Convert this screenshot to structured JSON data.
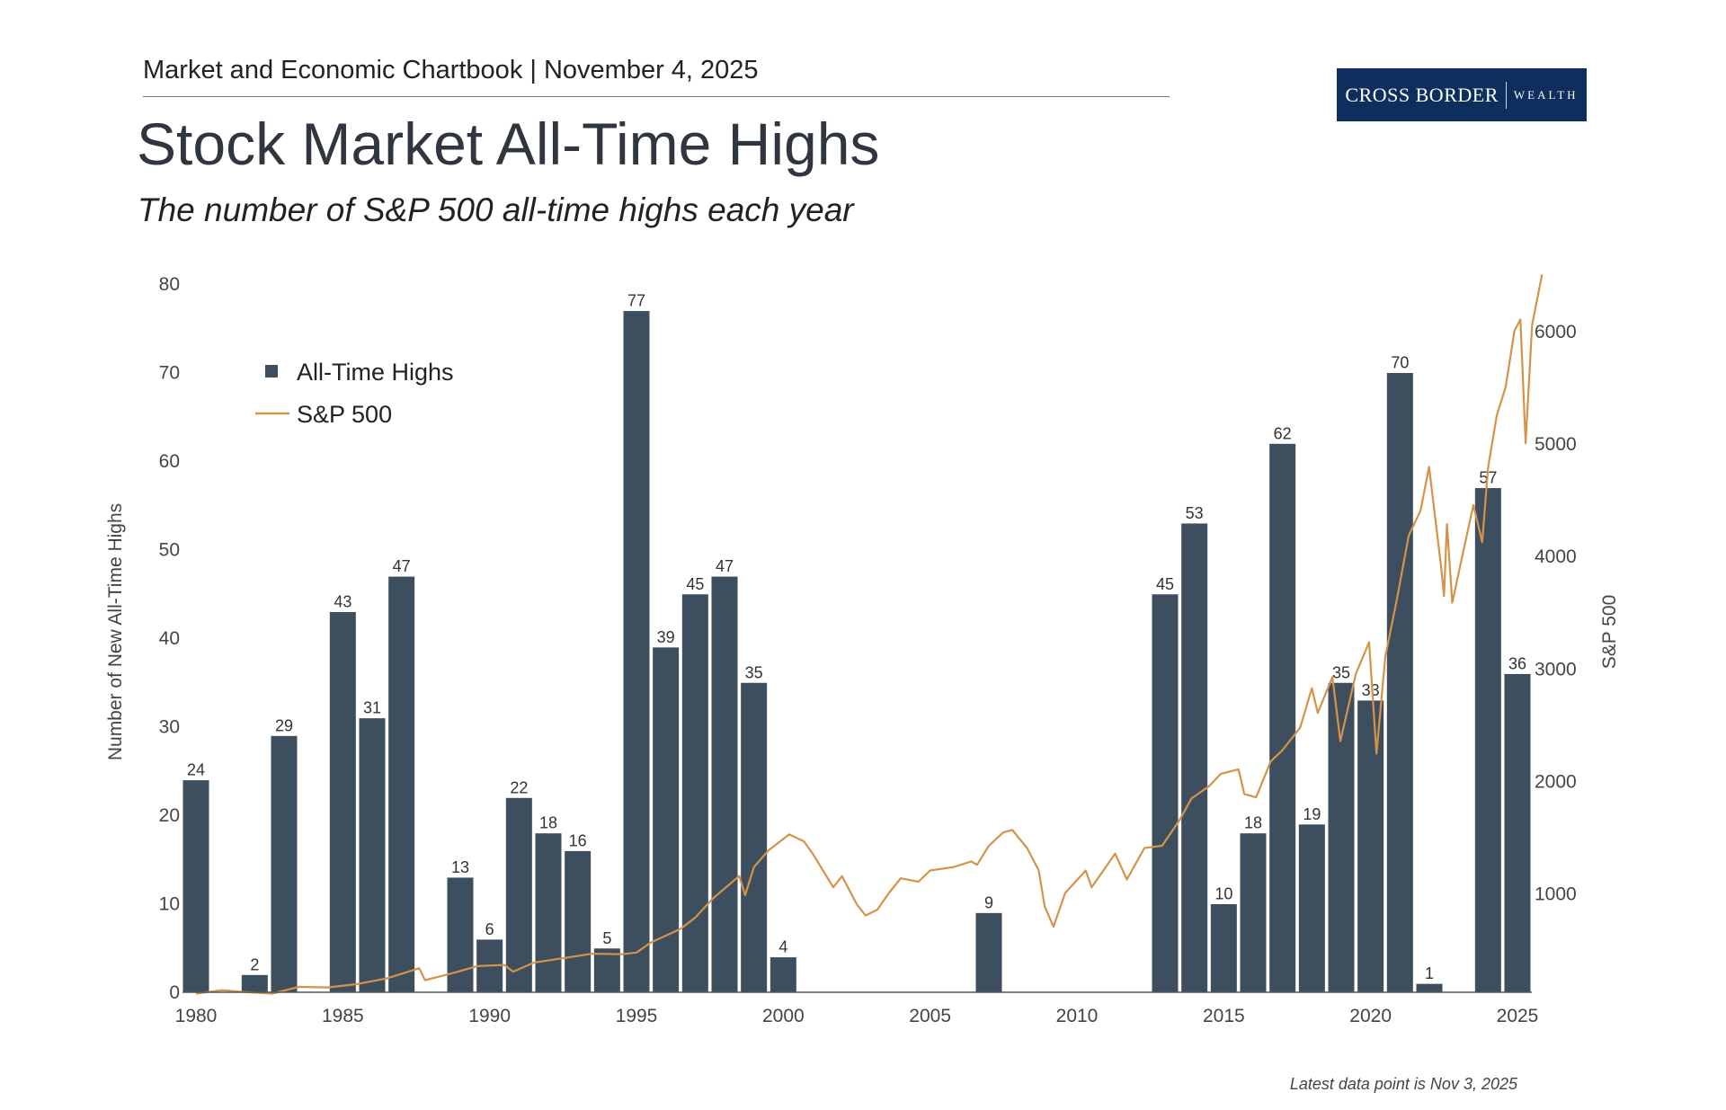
{
  "header": {
    "text": "Market and Economic Chartbook | November 4, 2025"
  },
  "logo": {
    "main": "CROSS BORDER",
    "sub": "WEALTH",
    "color": "#0e2f5e"
  },
  "title": "Stock Market All-Time Highs",
  "subtitle": "The number of S&P 500 all-time highs each year",
  "footnote": "Latest data point is Nov 3, 2025",
  "chart_data": {
    "type": "bar",
    "title": "Stock Market All-Time Highs",
    "ylabel": "Number of New All-Time Highs",
    "y2label": "S&P 500",
    "ylim": [
      0,
      80
    ],
    "y2ticks": [
      1000,
      2000,
      3000,
      4000,
      5000,
      6000
    ],
    "yticks": [
      0,
      10,
      20,
      30,
      40,
      50,
      60,
      70,
      80
    ],
    "xticks": [
      1980,
      1985,
      1990,
      1995,
      2000,
      2005,
      2010,
      2015,
      2020,
      2025
    ],
    "grid": false,
    "legend": {
      "placement": "top-left",
      "entries": [
        "All-Time Highs",
        "S&P 500"
      ]
    },
    "colors": {
      "bars": "#3d4f5f",
      "line": "#d4924a"
    },
    "series": [
      {
        "name": "All-Time Highs",
        "type": "bar",
        "axis": "left",
        "x": [
          1980,
          1981,
          1982,
          1983,
          1984,
          1985,
          1986,
          1987,
          1988,
          1989,
          1990,
          1991,
          1992,
          1993,
          1994,
          1995,
          1996,
          1997,
          1998,
          1999,
          2000,
          2001,
          2002,
          2003,
          2004,
          2005,
          2006,
          2007,
          2008,
          2009,
          2010,
          2011,
          2012,
          2013,
          2014,
          2015,
          2016,
          2017,
          2018,
          2019,
          2020,
          2021,
          2022,
          2023,
          2024,
          2025
        ],
        "values": [
          24,
          0,
          2,
          29,
          0,
          43,
          31,
          47,
          0,
          13,
          6,
          22,
          18,
          16,
          5,
          77,
          39,
          45,
          47,
          35,
          4,
          0,
          0,
          0,
          0,
          0,
          0,
          9,
          0,
          0,
          0,
          0,
          0,
          45,
          53,
          10,
          18,
          62,
          19,
          35,
          33,
          70,
          1,
          0,
          57,
          36
        ]
      },
      {
        "name": "S&P 500",
        "type": "line",
        "axis": "right",
        "points": [
          [
            1980.0,
            105
          ],
          [
            1980.9,
            135
          ],
          [
            1981.6,
            120
          ],
          [
            1982.6,
            105
          ],
          [
            1983.5,
            165
          ],
          [
            1984.5,
            160
          ],
          [
            1985.5,
            190
          ],
          [
            1986.5,
            240
          ],
          [
            1987.6,
            330
          ],
          [
            1987.8,
            225
          ],
          [
            1988.5,
            270
          ],
          [
            1989.6,
            350
          ],
          [
            1990.5,
            360
          ],
          [
            1990.8,
            300
          ],
          [
            1991.5,
            380
          ],
          [
            1992.5,
            420
          ],
          [
            1993.5,
            460
          ],
          [
            1994.5,
            455
          ],
          [
            1995.0,
            470
          ],
          [
            1995.5,
            560
          ],
          [
            1996.0,
            620
          ],
          [
            1996.5,
            680
          ],
          [
            1997.0,
            780
          ],
          [
            1997.6,
            950
          ],
          [
            1998.5,
            1150
          ],
          [
            1998.7,
            980
          ],
          [
            1999.0,
            1230
          ],
          [
            1999.5,
            1380
          ],
          [
            2000.2,
            1520
          ],
          [
            2000.7,
            1460
          ],
          [
            2001.0,
            1350
          ],
          [
            2001.7,
            1050
          ],
          [
            2002.0,
            1150
          ],
          [
            2002.5,
            900
          ],
          [
            2002.8,
            800
          ],
          [
            2003.2,
            850
          ],
          [
            2003.6,
            1000
          ],
          [
            2004.0,
            1130
          ],
          [
            2004.6,
            1100
          ],
          [
            2005.0,
            1200
          ],
          [
            2005.8,
            1230
          ],
          [
            2006.4,
            1280
          ],
          [
            2006.6,
            1250
          ],
          [
            2007.0,
            1420
          ],
          [
            2007.5,
            1540
          ],
          [
            2007.8,
            1560
          ],
          [
            2008.3,
            1400
          ],
          [
            2008.7,
            1200
          ],
          [
            2008.9,
            880
          ],
          [
            2009.2,
            700
          ],
          [
            2009.6,
            1000
          ],
          [
            2010.3,
            1200
          ],
          [
            2010.5,
            1050
          ],
          [
            2011.3,
            1350
          ],
          [
            2011.7,
            1120
          ],
          [
            2012.3,
            1400
          ],
          [
            2012.9,
            1420
          ],
          [
            2013.5,
            1650
          ],
          [
            2013.9,
            1840
          ],
          [
            2014.5,
            1950
          ],
          [
            2014.9,
            2060
          ],
          [
            2015.5,
            2100
          ],
          [
            2015.7,
            1880
          ],
          [
            2016.1,
            1850
          ],
          [
            2016.6,
            2170
          ],
          [
            2017.0,
            2270
          ],
          [
            2017.6,
            2470
          ],
          [
            2018.0,
            2820
          ],
          [
            2018.2,
            2600
          ],
          [
            2018.7,
            2920
          ],
          [
            2018.97,
            2350
          ],
          [
            2019.5,
            2950
          ],
          [
            2019.95,
            3230
          ],
          [
            2020.2,
            2240
          ],
          [
            2020.5,
            3100
          ],
          [
            2020.9,
            3620
          ],
          [
            2021.3,
            4180
          ],
          [
            2021.7,
            4400
          ],
          [
            2021.99,
            4790
          ],
          [
            2022.4,
            3900
          ],
          [
            2022.5,
            3640
          ],
          [
            2022.6,
            4280
          ],
          [
            2022.78,
            3580
          ],
          [
            2023.0,
            3850
          ],
          [
            2023.5,
            4450
          ],
          [
            2023.8,
            4120
          ],
          [
            2024.0,
            4780
          ],
          [
            2024.3,
            5250
          ],
          [
            2024.6,
            5500
          ],
          [
            2024.9,
            6000
          ],
          [
            2025.1,
            6100
          ],
          [
            2025.28,
            5000
          ],
          [
            2025.5,
            6050
          ],
          [
            2025.84,
            6500
          ]
        ]
      }
    ]
  }
}
